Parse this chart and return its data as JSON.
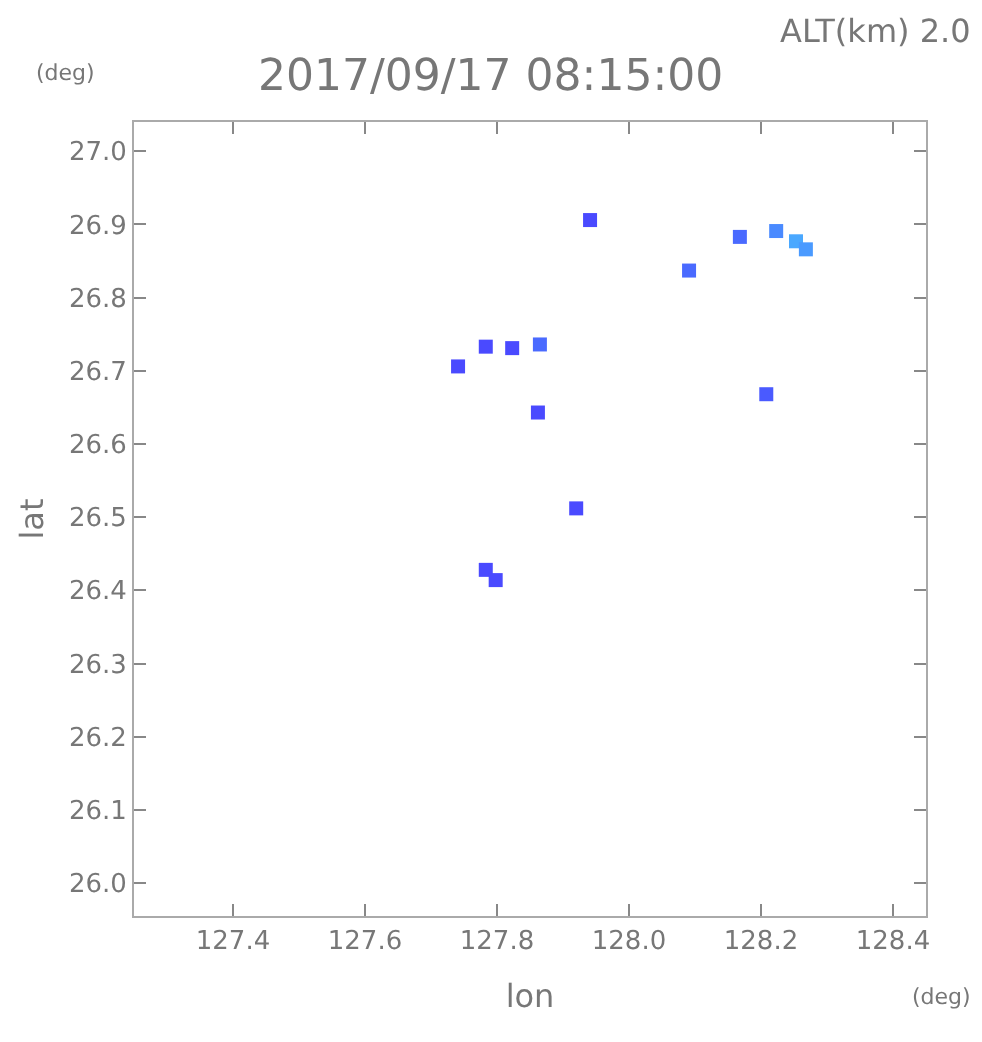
{
  "chart_data": {
    "type": "scatter",
    "title": "2017/09/17 08:15:00",
    "subtitle": "ALT(km) 2.0",
    "xlabel": "lon",
    "ylabel": "lat",
    "annotations": [
      "(deg)",
      "(deg)"
    ],
    "x": [
      127.941,
      128.091,
      128.223,
      128.253,
      128.268,
      128.168,
      128.208,
      127.783,
      127.823,
      127.865,
      127.741,
      127.862,
      127.92,
      127.783,
      127.798
    ],
    "values": [
      26.906,
      26.837,
      26.891,
      26.877,
      26.866,
      26.883,
      26.668,
      26.733,
      26.731,
      26.736,
      26.706,
      26.643,
      26.512,
      26.428,
      26.414
    ],
    "colors": [
      "#4a4aff",
      "#4a6aff",
      "#4a8aff",
      "#4aa8ff",
      "#4a9aff",
      "#4a6aff",
      "#4a5aff",
      "#4a4aff",
      "#4a4aff",
      "#4a6aff",
      "#4a4aff",
      "#4a4aff",
      "#4a4aff",
      "#4a4aff",
      "#4a4aff"
    ],
    "marker": "square",
    "xlim": [
      127.25,
      128.45
    ],
    "ylim": [
      25.955,
      27.04
    ],
    "xticks": [
      127.4,
      127.6,
      127.8,
      {
        "value": 128.0,
        "label": "128.0"
      },
      128.2,
      128.4
    ],
    "yticks": [
      {
        "value": 26.0,
        "label": "26.0"
      },
      26.1,
      26.2,
      26.3,
      26.4,
      26.5,
      26.6,
      26.7,
      26.8,
      26.9,
      {
        "value": 27.0,
        "label": "27.0"
      }
    ]
  }
}
